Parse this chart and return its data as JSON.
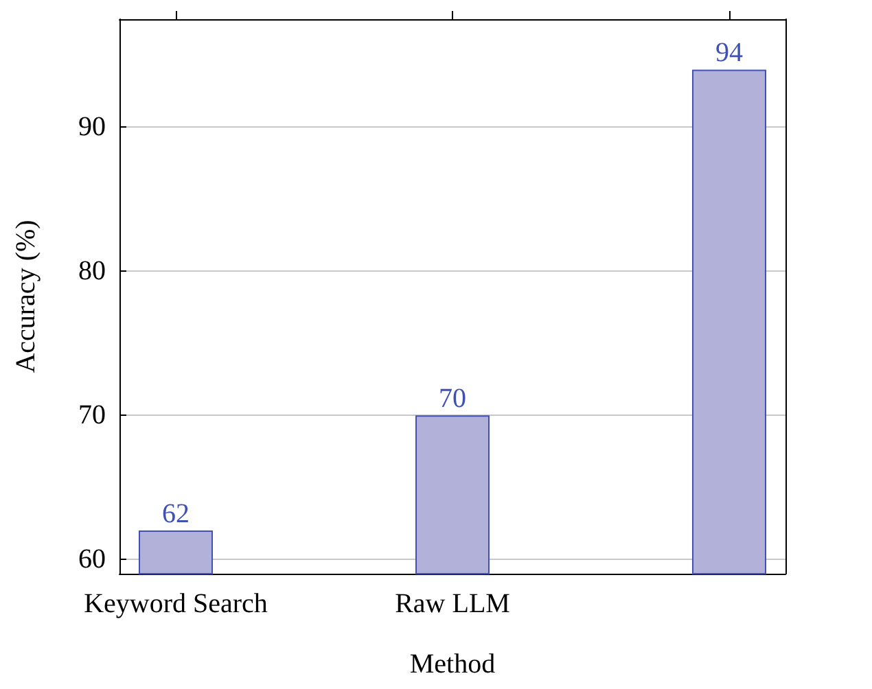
{
  "chart_data": {
    "type": "bar",
    "xlabel": "Method",
    "ylabel": "Accuracy (%)",
    "categories": [
      "Keyword Search",
      "Raw LLM",
      null
    ],
    "values": [
      62,
      70,
      94
    ],
    "color": "#b1b1da",
    "ylim": [
      59,
      97.5
    ],
    "yticks": [
      60,
      70,
      80,
      90
    ],
    "grid": "y",
    "data_labels": true
  }
}
